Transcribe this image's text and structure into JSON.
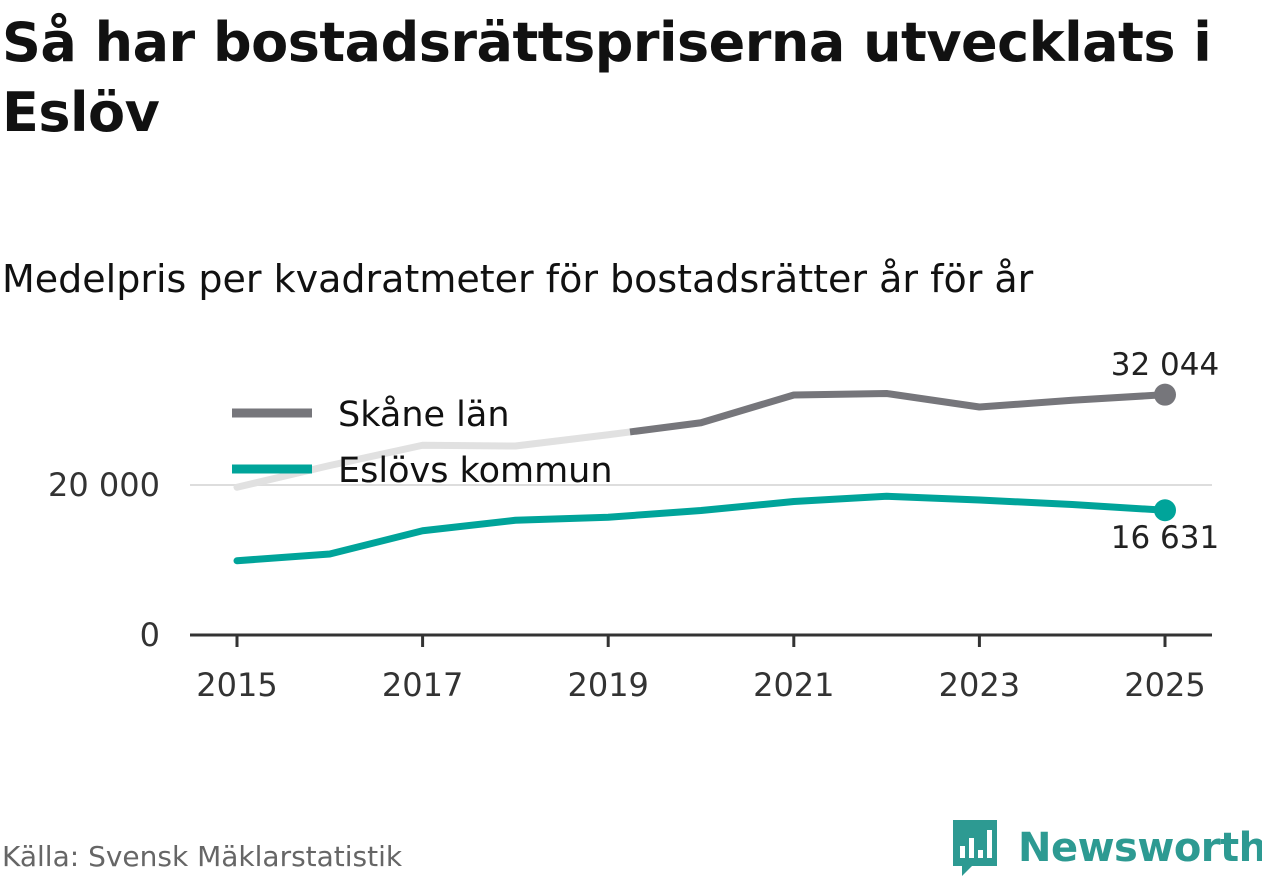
{
  "header": {
    "title": "Så har bostadsrättspriserna utvecklats i Eslöv",
    "subtitle": "Medelpris per kvadratmeter för bostadsrätter år för år"
  },
  "footer": {
    "source": "Källa: Svensk Mäklarstatistik",
    "brand": "Newsworthy"
  },
  "colors": {
    "skane": "#76767b",
    "skane_faded": "#e1e1e1",
    "eslov": "#00a49a",
    "brand": "#2d9a92",
    "grid": "#dddddd",
    "axis": "#333333"
  },
  "chart_data": {
    "type": "line",
    "title": "Medelpris per kvadratmeter för bostadsrätter år för år",
    "xlabel": "",
    "ylabel": "",
    "x": [
      2015,
      2016,
      2017,
      2018,
      2019,
      2020,
      2021,
      2022,
      2023,
      2024,
      2025
    ],
    "xticks": [
      "2015",
      "2017",
      "2019",
      "2021",
      "2023",
      "2025"
    ],
    "yticks": [
      {
        "value": 0,
        "label": "0"
      },
      {
        "value": 20000,
        "label": "20 000"
      }
    ],
    "ylim": [
      0,
      33000
    ],
    "grid": true,
    "legend_position": "top-left",
    "series": [
      {
        "name": "Skåne län",
        "color_key": "skane",
        "values": [
          19700,
          22600,
          25300,
          25200,
          26700,
          28300,
          32000,
          32200,
          30400,
          31300,
          32044
        ],
        "end_label": "32 044"
      },
      {
        "name": "Eslövs kommun",
        "color_key": "eslov",
        "values": [
          9900,
          10800,
          13900,
          15300,
          15700,
          16600,
          17800,
          18500,
          18000,
          17400,
          16631
        ],
        "end_label": "16 631"
      }
    ]
  }
}
